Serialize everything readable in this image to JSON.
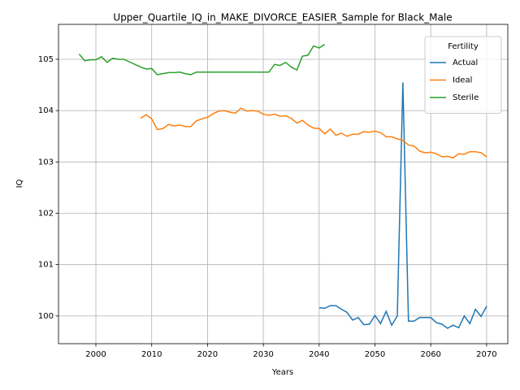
{
  "chart_data": {
    "type": "line",
    "title": "Upper_Quartile_IQ_in_MAKE_DIVORCE_EASIER_Sample for Black_Male",
    "x_label": "Years",
    "y_label": "IQ",
    "x": [
      1997,
      1998,
      1999,
      2000,
      2001,
      2002,
      2003,
      2004,
      2005,
      2006,
      2007,
      2008,
      2009,
      2010,
      2011,
      2012,
      2013,
      2014,
      2015,
      2016,
      2017,
      2018,
      2019,
      2020,
      2021,
      2022,
      2023,
      2024,
      2025,
      2026,
      2027,
      2028,
      2029,
      2030,
      2031,
      2032,
      2033,
      2034,
      2035,
      2036,
      2037,
      2038,
      2039,
      2040,
      2041,
      2042,
      2043,
      2044,
      2045,
      2046,
      2047,
      2048,
      2049,
      2050,
      2051,
      2052,
      2053,
      2054,
      2055,
      2056,
      2057,
      2058,
      2059,
      2060,
      2061,
      2062,
      2063,
      2064,
      2065,
      2066,
      2067,
      2068,
      2069,
      2070
    ],
    "series": [
      {
        "name": "Actual",
        "color": "#1f77b4",
        "values": [
          null,
          null,
          null,
          null,
          null,
          null,
          null,
          null,
          null,
          null,
          null,
          null,
          null,
          null,
          null,
          null,
          null,
          null,
          null,
          null,
          null,
          null,
          null,
          null,
          null,
          null,
          null,
          null,
          null,
          null,
          null,
          null,
          null,
          null,
          null,
          null,
          null,
          null,
          null,
          null,
          null,
          null,
          null,
          100.16,
          100.15,
          100.2,
          100.2,
          100.13,
          100.07,
          99.92,
          99.97,
          99.83,
          99.84,
          100.01,
          99.85,
          100.09,
          99.82,
          100.0,
          104.55,
          99.9,
          99.9,
          99.97,
          99.97,
          99.97,
          99.87,
          99.84,
          99.76,
          99.82,
          99.77,
          100.0,
          99.85,
          100.13,
          99.99,
          100.19
        ]
      },
      {
        "name": "Ideal",
        "color": "#ff7f0e",
        "values": [
          null,
          null,
          null,
          null,
          null,
          null,
          null,
          null,
          null,
          null,
          null,
          103.85,
          103.92,
          103.84,
          103.63,
          103.65,
          103.73,
          103.7,
          103.72,
          103.69,
          103.69,
          103.8,
          103.84,
          103.87,
          103.94,
          103.99,
          104.0,
          103.97,
          103.95,
          104.05,
          103.99,
          104.0,
          103.99,
          103.93,
          103.91,
          103.93,
          103.89,
          103.9,
          103.85,
          103.76,
          103.81,
          103.72,
          103.66,
          103.65,
          103.55,
          103.64,
          103.52,
          103.56,
          103.5,
          103.54,
          103.54,
          103.59,
          103.58,
          103.6,
          103.57,
          103.49,
          103.49,
          103.45,
          103.42,
          103.33,
          103.31,
          103.21,
          103.18,
          103.19,
          103.16,
          103.1,
          103.11,
          103.08,
          103.16,
          103.15,
          103.2,
          103.2,
          103.18,
          103.1
        ]
      },
      {
        "name": "Sterile",
        "color": "#2ca02c",
        "values": [
          105.1,
          104.97,
          104.99,
          104.99,
          105.05,
          104.94,
          105.02,
          105.0,
          105.0,
          104.95,
          104.9,
          104.85,
          104.81,
          104.82,
          104.7,
          104.72,
          104.74,
          104.74,
          104.75,
          104.72,
          104.7,
          104.75,
          104.75,
          104.75,
          104.75,
          104.75,
          104.75,
          104.75,
          104.75,
          104.75,
          104.75,
          104.75,
          104.75,
          104.75,
          104.75,
          104.9,
          104.88,
          104.94,
          104.85,
          104.79,
          105.06,
          105.08,
          105.26,
          105.22,
          105.29,
          null,
          null,
          null,
          null,
          null,
          null,
          null,
          null,
          null,
          null,
          null,
          null,
          null,
          null,
          null,
          null,
          null,
          null,
          null,
          null,
          null,
          null,
          null,
          null,
          null,
          null,
          null,
          null,
          null
        ]
      }
    ],
    "xlim": [
      1993.3,
      2073.8
    ],
    "ylim": [
      99.46,
      105.68
    ],
    "xticks": [
      2000,
      2010,
      2020,
      2030,
      2040,
      2050,
      2060,
      2070
    ],
    "yticks": [
      100,
      101,
      102,
      103,
      104,
      105
    ],
    "grid": true,
    "legend_title": "Fertility",
    "legend_loc": "upper right"
  }
}
